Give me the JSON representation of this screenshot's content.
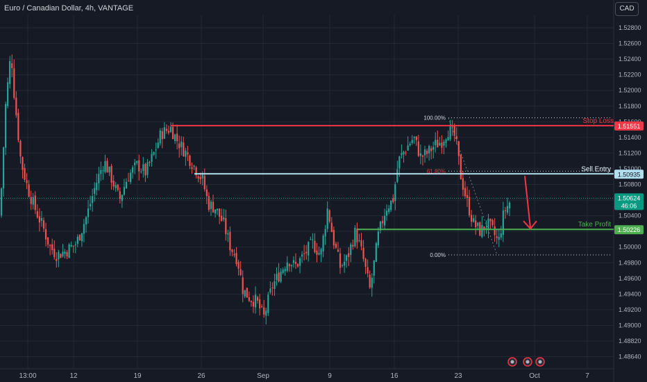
{
  "header": {
    "title": "Euro / Canadian Dollar, 4h, VANTAGE",
    "currency": "CAD"
  },
  "colors": {
    "background": "#161a25",
    "grid": "#232834",
    "bull": "#26a69a",
    "bear": "#ef5350",
    "stop_loss": "#f23645",
    "sell_entry": "#b2dfee",
    "take_profit": "#4caf50",
    "arrow": "#f23645",
    "current_price_bg": "#089981"
  },
  "chart_data": {
    "type": "candlestick",
    "y_axis": {
      "range": [
        1.4855,
        1.5305
      ],
      "ticks": [
        "1.52800",
        "1.52600",
        "1.52400",
        "1.52200",
        "1.52000",
        "1.51800",
        "1.51600",
        "1.51400",
        "1.51200",
        "1.51000",
        "1.50800",
        "1.50600",
        "1.50400",
        "1.50200",
        "1.50000",
        "1.49800",
        "1.49600",
        "1.49400",
        "1.49200",
        "1.49000",
        "1.48820",
        "1.48640"
      ]
    },
    "x_axis": {
      "ticks": [
        "13:00",
        "12",
        "19",
        "26",
        "Sep",
        "9",
        "16",
        "23",
        "Oct",
        "7"
      ]
    },
    "close_path": [
      [
        0,
        1.504
      ],
      [
        8,
        1.518
      ],
      [
        16,
        1.525
      ],
      [
        20,
        1.52
      ],
      [
        30,
        1.511
      ],
      [
        40,
        1.5075
      ],
      [
        50,
        1.505
      ],
      [
        62,
        1.5025
      ],
      [
        72,
        1.5
      ],
      [
        82,
        1.499
      ],
      [
        95,
        1.4995
      ],
      [
        110,
        1.5005
      ],
      [
        125,
        1.504
      ],
      [
        138,
        1.508
      ],
      [
        150,
        1.511
      ],
      [
        162,
        1.5085
      ],
      [
        172,
        1.506
      ],
      [
        184,
        1.509
      ],
      [
        198,
        1.5105
      ],
      [
        210,
        1.5095
      ],
      [
        222,
        1.512
      ],
      [
        232,
        1.5145
      ],
      [
        246,
        1.5152
      ],
      [
        256,
        1.5135
      ],
      [
        268,
        1.512
      ],
      [
        282,
        1.51
      ],
      [
        292,
        1.5085
      ],
      [
        300,
        1.5055
      ],
      [
        310,
        1.505
      ],
      [
        322,
        1.503
      ],
      [
        332,
        1.5
      ],
      [
        342,
        1.4985
      ],
      [
        350,
        1.4945
      ],
      [
        360,
        1.4935
      ],
      [
        370,
        1.493
      ],
      [
        380,
        1.491
      ],
      [
        392,
        1.495
      ],
      [
        402,
        1.4965
      ],
      [
        415,
        1.4985
      ],
      [
        425,
        1.4975
      ],
      [
        438,
        1.499
      ],
      [
        450,
        1.5005
      ],
      [
        462,
        1.499
      ],
      [
        472,
        1.505
      ],
      [
        480,
        1.501
      ],
      [
        490,
        1.4975
      ],
      [
        500,
        1.4985
      ],
      [
        512,
        1.502
      ],
      [
        522,
        1.499
      ],
      [
        533,
        1.4945
      ],
      [
        545,
        1.5015
      ],
      [
        556,
        1.505
      ],
      [
        566,
        1.506
      ],
      [
        574,
        1.511
      ],
      [
        584,
        1.5125
      ],
      [
        596,
        1.514
      ],
      [
        606,
        1.5115
      ],
      [
        616,
        1.512
      ],
      [
        626,
        1.513
      ],
      [
        636,
        1.5135
      ],
      [
        646,
        1.515
      ],
      [
        656,
        1.514
      ],
      [
        664,
        1.509
      ],
      [
        672,
        1.506
      ],
      [
        682,
        1.503
      ],
      [
        692,
        1.502
      ],
      [
        702,
        1.503
      ],
      [
        710,
        1.502
      ],
      [
        718,
        1.5005
      ],
      [
        726,
        1.5045
      ],
      [
        736,
        1.506
      ]
    ],
    "annotations": {
      "stop_loss": {
        "label": "Stop Loss",
        "price": "1.51551",
        "value": 1.51551
      },
      "sell_entry": {
        "label": "Sell Entry",
        "price": "1.50935",
        "value": 1.50935
      },
      "take_profit": {
        "label": "Take Profit",
        "price": "1.50226",
        "value": 1.50226
      },
      "current_price": {
        "price": "1.50624",
        "countdown": "46:06",
        "value": 1.50624
      },
      "fib_100": {
        "label": "100.00%",
        "value": 1.5165
      },
      "fib_618": {
        "label": "61.80%",
        "value": 1.5097
      },
      "fib_0": {
        "label": "0.00%",
        "value": 1.499
      }
    }
  }
}
